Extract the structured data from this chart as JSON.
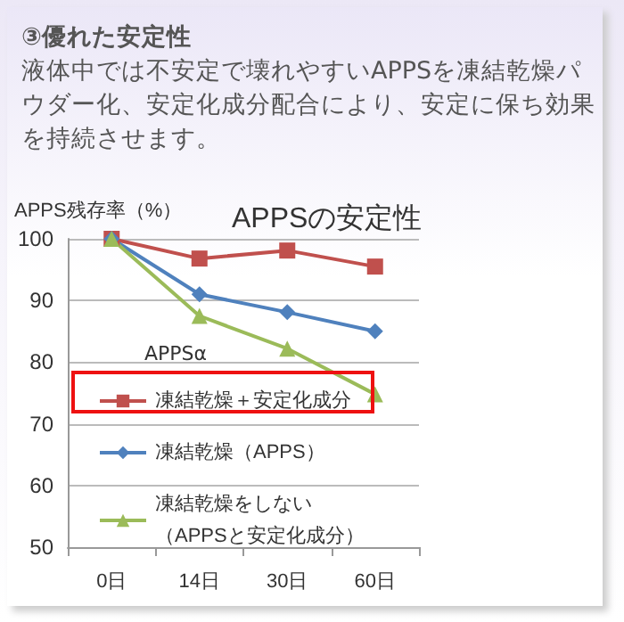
{
  "chart_data": {
    "type": "line",
    "annotations": [
      "③優れた安定性",
      "液体中では不安定で壊れやすいAPPSを凍結乾燥パウダー化、安定化成分配合により、安定に保ち効果を持続させます。"
    ],
    "title": "APPSの安定性",
    "ylabel": "APPS残存率（%）",
    "legend_title": "APPSα",
    "categories": [
      "0日",
      "14日",
      "30日",
      "60日"
    ],
    "series": [
      {
        "name": "凍結乾燥＋安定化成分",
        "color": "#c0504d",
        "marker": "square",
        "values": [
          100,
          96.8,
          98.1,
          95.5
        ]
      },
      {
        "name": "凍結乾燥（APPS）",
        "color": "#4f81bd",
        "marker": "diamond",
        "values": [
          100,
          91,
          88.1,
          85
        ]
      },
      {
        "name": "凍結乾燥をしない（APPSと安定化成分）",
        "color": "#9bbb59",
        "marker": "triangle",
        "values": [
          100,
          87.5,
          82.2,
          74.8
        ]
      }
    ],
    "ylim": [
      50,
      100
    ],
    "yticks": [
      50,
      60,
      70,
      80,
      90,
      100
    ],
    "grid": "y",
    "legend": "bottom left"
  }
}
